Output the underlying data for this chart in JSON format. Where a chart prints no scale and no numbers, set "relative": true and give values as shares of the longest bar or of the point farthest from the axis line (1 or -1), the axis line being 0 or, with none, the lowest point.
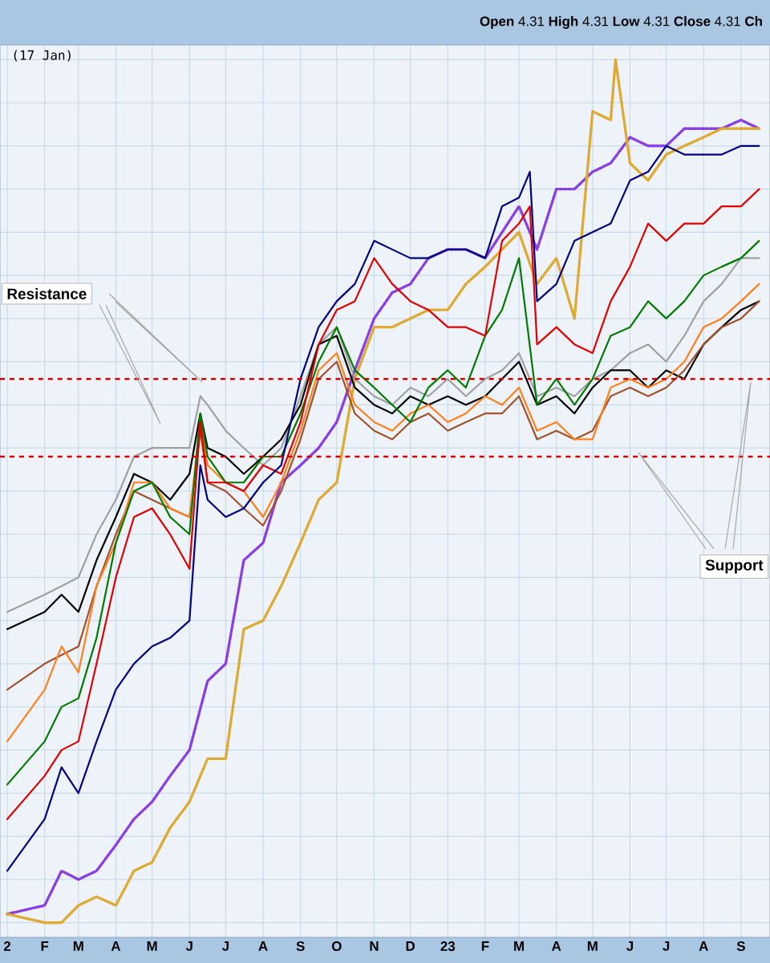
{
  "chart_data": {
    "type": "line",
    "relative": true,
    "grid": true,
    "tick_labels": "x",
    "line_style": "solid",
    "annotations": [
      "**Open** 4.31  **High** 4.31  **Low** 4.31  **Close** 4.31  **Ch**",
      "(17 Jan)",
      "Resistance",
      "Support"
    ],
    "xlim": [
      "2021-12-26",
      "2023-09-25"
    ],
    "xticks": [
      {
        "value": "2022-01-01",
        "label": "2"
      },
      {
        "value": "2022-02-01",
        "label": "F"
      },
      {
        "value": "2022-03-01",
        "label": "M"
      },
      {
        "value": "2022-04-01",
        "label": "A"
      },
      {
        "value": "2022-05-01",
        "label": "M"
      },
      {
        "value": "2022-06-01",
        "label": "J"
      },
      {
        "value": "2022-07-01",
        "label": "J"
      },
      {
        "value": "2022-08-01",
        "label": "A"
      },
      {
        "value": "2022-09-01",
        "label": "S"
      },
      {
        "value": "2022-10-01",
        "label": "O"
      },
      {
        "value": "2022-11-01",
        "label": "N"
      },
      {
        "value": "2022-12-01",
        "label": "D"
      },
      {
        "value": "2023-01-01",
        "label": "23"
      },
      {
        "value": "2023-02-01",
        "label": "F"
      },
      {
        "value": "2023-03-01",
        "label": "M"
      },
      {
        "value": "2023-04-01",
        "label": "A"
      },
      {
        "value": "2023-05-01",
        "label": "M"
      },
      {
        "value": "2023-06-01",
        "label": "J"
      },
      {
        "value": "2023-07-01",
        "label": "J"
      },
      {
        "value": "2023-08-01",
        "label": "A"
      },
      {
        "value": "2023-09-01",
        "label": "S"
      }
    ],
    "x": [
      "2022-01-01",
      "2022-02-01",
      "2022-02-15",
      "2022-03-01",
      "2022-03-16",
      "2022-04-01",
      "2022-04-16",
      "2022-05-01",
      "2022-05-16",
      "2022-06-01",
      "2022-06-16",
      "2022-07-01",
      "2022-07-16",
      "2022-08-01",
      "2022-08-16",
      "2022-09-01",
      "2022-09-16",
      "2022-10-01",
      "2022-10-16",
      "2022-11-01",
      "2022-11-16",
      "2022-12-01",
      "2022-12-16",
      "2023-01-01",
      "2023-01-16",
      "2023-02-01",
      "2023-02-15",
      "2023-03-01",
      "2023-03-16",
      "2023-04-01",
      "2023-04-16",
      "2023-05-01",
      "2023-05-16",
      "2023-06-01",
      "2023-06-16",
      "2023-07-01",
      "2023-07-16",
      "2023-08-01",
      "2023-08-16",
      "2023-09-01",
      "2023-09-16"
    ],
    "ref_lines": [
      {
        "axis": "y",
        "value": 0.63,
        "color": "#d40000",
        "line_style": "dashed"
      },
      {
        "axis": "y",
        "value": 0.54,
        "color": "#d40000",
        "line_style": "dashed"
      }
    ],
    "series": [
      {
        "color": "#8a3fe0",
        "line_style": "dotted",
        "values": [
          0.01,
          0.02,
          0.06,
          0.05,
          0.06,
          0.09,
          0.12,
          0.14,
          0.17,
          0.2,
          0.28,
          0.3,
          0.42,
          0.44,
          0.51,
          0.53,
          0.55,
          0.58,
          0.64,
          0.7,
          0.73,
          0.74,
          0.77,
          0.78,
          0.78,
          0.77,
          0.8,
          0.83,
          0.78,
          0.85,
          0.85,
          0.87,
          0.88,
          0.91,
          0.9,
          0.9,
          0.92,
          0.92,
          0.92,
          0.93,
          0.92
        ]
      },
      {
        "color": "#ddaa33",
        "line_style": "dotted",
        "x": [
          "2022-01-01",
          "2022-02-01",
          "2022-02-15",
          "2022-03-01",
          "2022-03-16",
          "2022-04-01",
          "2022-04-16",
          "2022-05-01",
          "2022-05-16",
          "2022-06-01",
          "2022-06-16",
          "2022-07-01",
          "2022-07-16",
          "2022-08-01",
          "2022-08-16",
          "2022-09-01",
          "2022-09-16",
          "2022-10-01",
          "2022-10-16",
          "2022-11-01",
          "2022-11-16",
          "2022-12-01",
          "2022-12-16",
          "2023-01-01",
          "2023-01-16",
          "2023-02-01",
          "2023-02-15",
          "2023-03-01",
          "2023-03-16",
          "2023-04-01",
          "2023-04-16",
          "2023-05-01",
          "2023-05-16",
          "2023-05-20",
          "2023-06-01",
          "2023-06-16",
          "2023-07-01",
          "2023-07-16",
          "2023-08-01",
          "2023-08-16",
          "2023-09-01",
          "2023-09-16"
        ],
        "values": [
          0.01,
          0.0,
          0.0,
          0.02,
          0.03,
          0.02,
          0.06,
          0.07,
          0.11,
          0.14,
          0.19,
          0.19,
          0.34,
          0.35,
          0.39,
          0.44,
          0.49,
          0.51,
          0.63,
          0.69,
          0.69,
          0.7,
          0.71,
          0.71,
          0.74,
          0.76,
          0.78,
          0.8,
          0.74,
          0.77,
          0.7,
          0.94,
          0.93,
          1.0,
          0.88,
          0.86,
          0.89,
          0.9,
          0.91,
          0.92,
          0.92,
          0.92
        ]
      },
      {
        "color": "#a0a0a0",
        "x": [
          "2022-01-01",
          "2022-02-01",
          "2022-02-15",
          "2022-03-01",
          "2022-03-16",
          "2022-04-01",
          "2022-04-16",
          "2022-05-01",
          "2022-05-16",
          "2022-06-01",
          "2022-06-10",
          "2022-06-16",
          "2022-07-01",
          "2022-07-16",
          "2022-08-01",
          "2022-08-16",
          "2022-09-01",
          "2022-09-16",
          "2022-10-01",
          "2022-10-16",
          "2022-11-01",
          "2022-11-16",
          "2022-12-01",
          "2022-12-16",
          "2023-01-01",
          "2023-01-16",
          "2023-02-01",
          "2023-02-15",
          "2023-03-01",
          "2023-03-16",
          "2023-04-01",
          "2023-04-16",
          "2023-05-01",
          "2023-05-16",
          "2023-06-01",
          "2023-06-16",
          "2023-07-01",
          "2023-07-16",
          "2023-08-01",
          "2023-08-16",
          "2023-09-01",
          "2023-09-16"
        ],
        "values": [
          0.36,
          0.38,
          0.39,
          0.4,
          0.45,
          0.49,
          0.54,
          0.55,
          0.55,
          0.55,
          0.61,
          0.6,
          0.57,
          0.55,
          0.53,
          0.55,
          0.61,
          0.67,
          0.69,
          0.63,
          0.61,
          0.6,
          0.62,
          0.61,
          0.63,
          0.61,
          0.63,
          0.64,
          0.66,
          0.61,
          0.62,
          0.61,
          0.63,
          0.64,
          0.66,
          0.67,
          0.65,
          0.68,
          0.72,
          0.74,
          0.77,
          0.77
        ]
      },
      {
        "color": "#000000",
        "x": [
          "2022-01-01",
          "2022-02-01",
          "2022-02-15",
          "2022-03-01",
          "2022-03-16",
          "2022-04-01",
          "2022-04-16",
          "2022-05-01",
          "2022-05-16",
          "2022-06-01",
          "2022-06-10",
          "2022-06-16",
          "2022-07-01",
          "2022-07-16",
          "2022-08-01",
          "2022-08-16",
          "2022-09-01",
          "2022-09-16",
          "2022-10-01",
          "2022-10-16",
          "2022-11-01",
          "2022-11-16",
          "2022-12-01",
          "2022-12-16",
          "2023-01-01",
          "2023-01-16",
          "2023-02-01",
          "2023-02-15",
          "2023-03-01",
          "2023-03-16",
          "2023-04-01",
          "2023-04-16",
          "2023-05-01",
          "2023-05-16",
          "2023-06-01",
          "2023-06-16",
          "2023-07-01",
          "2023-07-16",
          "2023-08-01",
          "2023-08-16",
          "2023-09-01",
          "2023-09-16"
        ],
        "values": [
          0.34,
          0.36,
          0.38,
          0.36,
          0.42,
          0.47,
          0.52,
          0.51,
          0.49,
          0.52,
          0.59,
          0.55,
          0.54,
          0.52,
          0.54,
          0.56,
          0.6,
          0.67,
          0.68,
          0.62,
          0.6,
          0.59,
          0.61,
          0.6,
          0.61,
          0.6,
          0.61,
          0.63,
          0.65,
          0.6,
          0.61,
          0.59,
          0.62,
          0.64,
          0.64,
          0.62,
          0.64,
          0.63,
          0.67,
          0.69,
          0.71,
          0.72
        ]
      },
      {
        "color": "#a0522d",
        "x": [
          "2022-01-01",
          "2022-02-01",
          "2022-02-15",
          "2022-03-01",
          "2022-03-16",
          "2022-04-01",
          "2022-04-16",
          "2022-05-01",
          "2022-05-16",
          "2022-06-01",
          "2022-06-10",
          "2022-06-16",
          "2022-07-01",
          "2022-07-16",
          "2022-08-01",
          "2022-08-16",
          "2022-09-01",
          "2022-09-16",
          "2022-10-01",
          "2022-10-16",
          "2022-11-01",
          "2022-11-16",
          "2022-12-01",
          "2022-12-16",
          "2023-01-01",
          "2023-01-16",
          "2023-02-01",
          "2023-02-15",
          "2023-03-01",
          "2023-03-16",
          "2023-04-01",
          "2023-04-16",
          "2023-05-01",
          "2023-05-16",
          "2023-06-01",
          "2023-06-16",
          "2023-07-01",
          "2023-07-16",
          "2023-08-01",
          "2023-08-16",
          "2023-09-01",
          "2023-09-16"
        ],
        "values": [
          0.27,
          0.3,
          0.31,
          0.32,
          0.39,
          0.45,
          0.5,
          0.49,
          0.48,
          0.47,
          0.57,
          0.51,
          0.5,
          0.48,
          0.46,
          0.5,
          0.56,
          0.63,
          0.65,
          0.59,
          0.57,
          0.56,
          0.58,
          0.59,
          0.57,
          0.58,
          0.59,
          0.59,
          0.61,
          0.56,
          0.57,
          0.56,
          0.57,
          0.61,
          0.62,
          0.61,
          0.62,
          0.64,
          0.67,
          0.69,
          0.7,
          0.72
        ]
      },
      {
        "color": "#ff7f1a",
        "x": [
          "2022-01-01",
          "2022-02-01",
          "2022-02-15",
          "2022-03-01",
          "2022-03-16",
          "2022-04-01",
          "2022-04-16",
          "2022-05-01",
          "2022-05-16",
          "2022-06-01",
          "2022-06-10",
          "2022-06-16",
          "2022-07-01",
          "2022-07-16",
          "2022-08-01",
          "2022-08-16",
          "2022-09-01",
          "2022-09-16",
          "2022-10-01",
          "2022-10-16",
          "2022-11-01",
          "2022-11-16",
          "2022-12-01",
          "2022-12-16",
          "2023-01-01",
          "2023-01-16",
          "2023-02-01",
          "2023-02-15",
          "2023-03-01",
          "2023-03-16",
          "2023-04-01",
          "2023-04-16",
          "2023-05-01",
          "2023-05-16",
          "2023-06-01",
          "2023-06-16",
          "2023-07-01",
          "2023-07-16",
          "2023-08-01",
          "2023-08-16",
          "2023-09-01",
          "2023-09-16"
        ],
        "values": [
          0.21,
          0.27,
          0.32,
          0.29,
          0.39,
          0.44,
          0.51,
          0.51,
          0.48,
          0.47,
          0.58,
          0.53,
          0.51,
          0.5,
          0.47,
          0.51,
          0.57,
          0.64,
          0.66,
          0.6,
          0.58,
          0.57,
          0.59,
          0.6,
          0.58,
          0.59,
          0.61,
          0.6,
          0.62,
          0.57,
          0.58,
          0.56,
          0.56,
          0.62,
          0.63,
          0.62,
          0.63,
          0.65,
          0.69,
          0.7,
          0.72,
          0.74
        ]
      },
      {
        "color": "#007a00",
        "x": [
          "2022-01-01",
          "2022-02-01",
          "2022-02-15",
          "2022-03-01",
          "2022-03-16",
          "2022-04-01",
          "2022-04-16",
          "2022-05-01",
          "2022-05-16",
          "2022-06-01",
          "2022-06-10",
          "2022-06-16",
          "2022-07-01",
          "2022-07-16",
          "2022-08-01",
          "2022-08-16",
          "2022-09-01",
          "2022-09-16",
          "2022-10-01",
          "2022-10-16",
          "2022-11-01",
          "2022-11-16",
          "2022-12-01",
          "2022-12-16",
          "2023-01-01",
          "2023-01-16",
          "2023-02-01",
          "2023-02-15",
          "2023-03-01",
          "2023-03-16",
          "2023-04-01",
          "2023-04-16",
          "2023-05-01",
          "2023-05-16",
          "2023-06-01",
          "2023-06-16",
          "2023-07-01",
          "2023-07-16",
          "2023-08-01",
          "2023-08-16",
          "2023-09-01",
          "2023-09-16"
        ],
        "values": [
          0.16,
          0.21,
          0.25,
          0.26,
          0.33,
          0.44,
          0.5,
          0.51,
          0.47,
          0.45,
          0.59,
          0.54,
          0.51,
          0.51,
          0.54,
          0.54,
          0.59,
          0.65,
          0.69,
          0.64,
          0.62,
          0.6,
          0.58,
          0.62,
          0.64,
          0.62,
          0.68,
          0.71,
          0.77,
          0.6,
          0.63,
          0.6,
          0.63,
          0.68,
          0.69,
          0.72,
          0.7,
          0.72,
          0.75,
          0.76,
          0.77,
          0.79
        ]
      },
      {
        "color": "#e00000",
        "x": [
          "2022-01-01",
          "2022-02-01",
          "2022-02-15",
          "2022-03-01",
          "2022-03-16",
          "2022-04-01",
          "2022-04-16",
          "2022-05-01",
          "2022-05-16",
          "2022-06-01",
          "2022-06-10",
          "2022-06-16",
          "2022-07-01",
          "2022-07-16",
          "2022-08-01",
          "2022-08-16",
          "2022-09-01",
          "2022-09-16",
          "2022-10-01",
          "2022-10-16",
          "2022-11-01",
          "2022-11-16",
          "2022-12-01",
          "2022-12-16",
          "2023-01-01",
          "2023-01-16",
          "2023-02-01",
          "2023-02-15",
          "2023-03-01",
          "2023-03-10",
          "2023-03-16",
          "2023-04-01",
          "2023-04-16",
          "2023-05-01",
          "2023-05-16",
          "2023-06-01",
          "2023-06-16",
          "2023-07-01",
          "2023-07-16",
          "2023-08-01",
          "2023-08-16",
          "2023-09-01",
          "2023-09-16"
        ],
        "values": [
          0.12,
          0.17,
          0.2,
          0.21,
          0.3,
          0.4,
          0.47,
          0.48,
          0.45,
          0.41,
          0.58,
          0.51,
          0.51,
          0.5,
          0.53,
          0.52,
          0.58,
          0.67,
          0.71,
          0.72,
          0.77,
          0.74,
          0.72,
          0.71,
          0.69,
          0.69,
          0.68,
          0.79,
          0.81,
          0.83,
          0.67,
          0.69,
          0.67,
          0.66,
          0.72,
          0.76,
          0.81,
          0.79,
          0.81,
          0.81,
          0.83,
          0.83,
          0.85
        ]
      },
      {
        "color": "#000080",
        "x": [
          "2022-01-01",
          "2022-02-01",
          "2022-02-15",
          "2022-03-01",
          "2022-03-16",
          "2022-04-01",
          "2022-04-16",
          "2022-05-01",
          "2022-05-16",
          "2022-06-01",
          "2022-06-10",
          "2022-06-16",
          "2022-07-01",
          "2022-07-16",
          "2022-08-01",
          "2022-08-16",
          "2022-09-01",
          "2022-09-16",
          "2022-10-01",
          "2022-10-16",
          "2022-11-01",
          "2022-11-16",
          "2022-12-01",
          "2022-12-16",
          "2023-01-01",
          "2023-01-16",
          "2023-02-01",
          "2023-02-15",
          "2023-03-01",
          "2023-03-10",
          "2023-03-16",
          "2023-04-01",
          "2023-04-16",
          "2023-05-01",
          "2023-05-16",
          "2023-06-01",
          "2023-06-16",
          "2023-07-01",
          "2023-07-16",
          "2023-08-01",
          "2023-08-16",
          "2023-09-01",
          "2023-09-16"
        ],
        "values": [
          0.06,
          0.12,
          0.18,
          0.15,
          0.21,
          0.27,
          0.3,
          0.32,
          0.33,
          0.35,
          0.53,
          0.49,
          0.47,
          0.48,
          0.51,
          0.53,
          0.63,
          0.69,
          0.72,
          0.74,
          0.79,
          0.78,
          0.77,
          0.77,
          0.78,
          0.78,
          0.77,
          0.83,
          0.84,
          0.87,
          0.72,
          0.74,
          0.79,
          0.8,
          0.81,
          0.86,
          0.87,
          0.9,
          0.89,
          0.89,
          0.89,
          0.9,
          0.9
        ]
      }
    ]
  }
}
